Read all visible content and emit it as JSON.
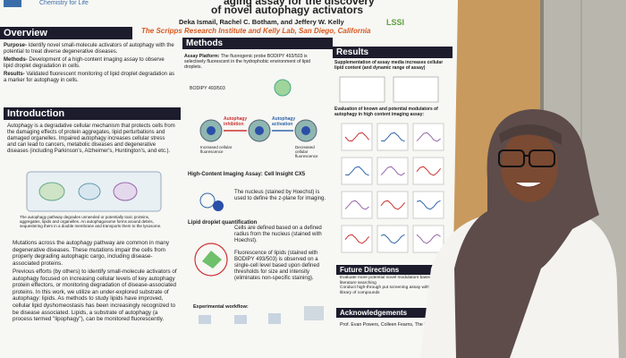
{
  "poster": {
    "logo_text": "Chemistry for Life",
    "title_lines": [
      "aging assay for the discovery",
      "of novel autophagy activators"
    ],
    "authors": "Deka Ismail, Rachel C. Botham, and Jeffery W. Kelly",
    "affiliation": "The Scripps Research Institute and Kelly Lab, San Diego, California",
    "badge": "LSSI",
    "overview": {
      "heading": "Overview",
      "items": [
        {
          "label": "Purpose-",
          "text": "Identify novel small-molecule activators of autophagy with the potential to treat diverse degenerative diseases."
        },
        {
          "label": "Methods-",
          "text": "Development of a high-content imaging assay to observe lipid droplet degradation in cells."
        },
        {
          "label": "Results-",
          "text": "Validated fluorescent monitoring of lipid droplet degradation as a marker for autophagy in cells."
        }
      ]
    },
    "introduction": {
      "heading": "Introduction",
      "paragraphs": [
        "Autophagy is a degradative cellular mechanism that protects cells from the damaging effects of protein aggregates, lipid perturbations and damaged organelles. Impaired autophagy increases cellular stress and can lead to cancers, metabolic diseases and degenerative diseases (including Parkinson's, Alzheimer's, Huntington's, and etc.).",
        "The autophagy pathway degrades unneeded or potentially toxic proteins, aggregates, lipids and organelles. An autophagosome forms around debris, sequestering them in a double membrane and transports them to the lysosome.",
        "Mutations across the autophagy pathway are common in many degenerative diseases. These mutations impair the cells from properly degrading autophagic cargo, including disease-associated proteins.",
        "Previous efforts (by others) to identify small-molecule activators of autophagy focused on increasing cellular levels of key autophagy protein effectors, or monitoring degradation of disease-associated proteins. In this work, we utilize an under-explored substrate of autophagy: lipids. As methods to study lipids have improved, cellular lipid dyshomeostasis has been increasingly recognized to be disease associated. Lipids, a substrate of autophagy (a process termed \"lipophagy\"), can be monitored fluorescently."
      ]
    },
    "methods": {
      "heading": "Methods",
      "assay_label": "Assay Platform:",
      "assay_text": "The fluorogenic probe BODIPY 493/503 is selectively fluorescent in the hydrophobic environment of lipid droplets.",
      "probe": "BODIPY 493/503",
      "inhibition": "Autophagy inhibition",
      "activation": "Autophagy activation",
      "increased": "Increased cellular fluorescence",
      "decreased": "Decreased cellular fluorescence",
      "imaging_heading": "High-Content Imaging Assay: Cell Insight CX5",
      "imaging_text": "The nucleus (stained by Hoechst) is used to define the z-plane for imaging.",
      "quant_heading": "Lipid droplet quantification",
      "quant_text_1": "Cells are defined based on a defined radius from the nucleus (stained with Hoechst).",
      "quant_text_2": "Fluorescence of lipids (stained with BODIPY 493/503) is observed on a single-cell level based upon defined thresholds for size and intensity (eliminates non-specific staining).",
      "workflow": "Experimental workflow:"
    },
    "results": {
      "heading": "Results",
      "text_1": "Supplementation of assay media increases cellular lipid content (and dynamic range of assay)",
      "text_2": "Evaluation of known and potential modulators of autophagy in high content imaging assay:"
    },
    "future_directions": {
      "heading": "Future Directions",
      "items": [
        "Evaluate more potential novel modulators based on literature searching",
        "Conduct high-through put screening assay with a library of compounds"
      ]
    },
    "acknowledgements": {
      "heading": "Acknowledgements",
      "text": "Prof. Evan Powers, Colleen Fearns, The Kelly"
    }
  }
}
